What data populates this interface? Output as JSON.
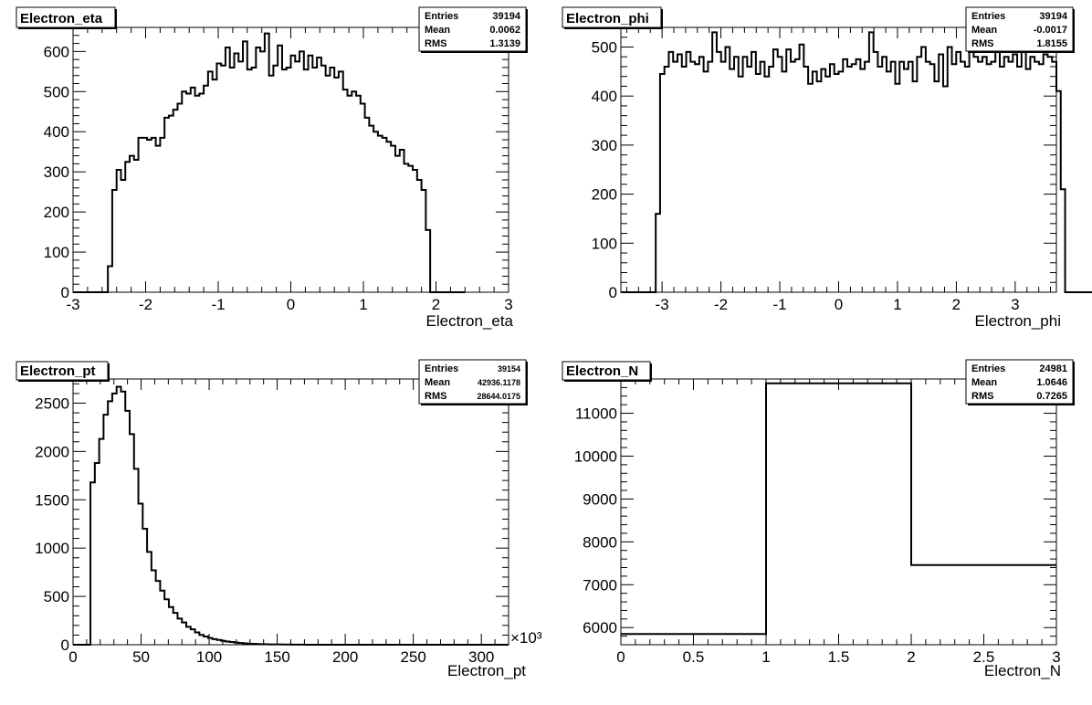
{
  "canvas": {
    "background": "#ffffff",
    "line_color": "#000000"
  },
  "chart_data": [
    {
      "type": "bar",
      "title": "Electron_eta",
      "xlabel": "Electron_eta",
      "ylabel": "",
      "xlim": [
        -3,
        3
      ],
      "ylim": [
        0,
        660
      ],
      "x_ticks": [
        -3,
        -2,
        -1,
        0,
        1,
        2,
        3
      ],
      "y_ticks": [
        0,
        100,
        200,
        300,
        400,
        500,
        600
      ],
      "x_tick_labels": [
        "-3",
        "-2",
        "-1",
        "0",
        "1",
        "2",
        "3"
      ],
      "y_tick_labels": [
        "0",
        "100",
        "200",
        "300",
        "400",
        "500",
        "600"
      ],
      "x_exponent_label": "",
      "stats": {
        "entries_label": "Entries",
        "entries": "39194",
        "mean_label": "Mean",
        "mean": "0.0062",
        "rms_label": "RMS",
        "rms": "1.3139"
      },
      "bin_edges_start": -3.0,
      "bin_width": 0.06,
      "values": [
        0,
        0,
        0,
        0,
        0,
        0,
        0,
        0,
        65,
        255,
        305,
        280,
        325,
        340,
        330,
        385,
        385,
        380,
        385,
        365,
        385,
        435,
        440,
        455,
        470,
        500,
        495,
        510,
        490,
        495,
        515,
        550,
        530,
        570,
        565,
        610,
        560,
        595,
        575,
        625,
        555,
        560,
        610,
        600,
        645,
        540,
        565,
        615,
        555,
        560,
        590,
        575,
        600,
        555,
        590,
        560,
        585,
        565,
        540,
        560,
        535,
        550,
        505,
        490,
        500,
        490,
        470,
        435,
        415,
        400,
        390,
        385,
        375,
        365,
        340,
        355,
        320,
        315,
        305,
        280,
        255,
        155,
        0,
        0,
        0,
        0,
        0,
        0,
        0,
        0
      ]
    },
    {
      "type": "bar",
      "title": "Electron_phi",
      "xlabel": "Electron_phi",
      "ylabel": "",
      "xlim": [
        -3.7,
        3.7
      ],
      "ylim": [
        0,
        540
      ],
      "x_ticks": [
        -3,
        -2,
        -1,
        0,
        1,
        2,
        3
      ],
      "y_ticks": [
        0,
        100,
        200,
        300,
        400,
        500
      ],
      "x_tick_labels": [
        "-3",
        "-2",
        "-1",
        "0",
        "1",
        "2",
        "3"
      ],
      "y_tick_labels": [
        "0",
        "100",
        "200",
        "300",
        "400",
        "500"
      ],
      "x_exponent_label": "",
      "stats": {
        "entries_label": "Entries",
        "entries": "39194",
        "mean_label": "Mean",
        "mean": "-0.0017",
        "rms_label": "RMS",
        "rms": "1.8155"
      },
      "bin_edges_start": -3.7,
      "bin_width": 0.074,
      "values": [
        0,
        0,
        0,
        0,
        0,
        0,
        0,
        0,
        160,
        445,
        460,
        490,
        470,
        485,
        460,
        490,
        470,
        465,
        480,
        450,
        470,
        530,
        490,
        470,
        500,
        455,
        480,
        440,
        480,
        460,
        490,
        445,
        470,
        440,
        460,
        495,
        480,
        450,
        495,
        470,
        475,
        505,
        460,
        425,
        450,
        430,
        455,
        440,
        465,
        445,
        450,
        475,
        460,
        465,
        475,
        455,
        470,
        530,
        490,
        460,
        480,
        450,
        470,
        425,
        470,
        455,
        470,
        430,
        480,
        500,
        470,
        465,
        430,
        485,
        420,
        500,
        465,
        490,
        470,
        460,
        495,
        480,
        470,
        480,
        465,
        470,
        500,
        460,
        480,
        470,
        485,
        460,
        500,
        455,
        480,
        470,
        465,
        485,
        480,
        470,
        410,
        210,
        0,
        0,
        0,
        0,
        0,
        0,
        0,
        0
      ]
    },
    {
      "type": "bar",
      "title": "Electron_pt",
      "xlabel": "Electron_pt",
      "ylabel": "",
      "xlim": [
        0,
        320
      ],
      "ylim": [
        0,
        2750
      ],
      "x_ticks": [
        0,
        50,
        100,
        150,
        200,
        250,
        300
      ],
      "y_ticks": [
        0,
        500,
        1000,
        1500,
        2000,
        2500
      ],
      "x_tick_labels": [
        "0",
        "50",
        "100",
        "150",
        "200",
        "250",
        "300"
      ],
      "y_tick_labels": [
        "0",
        "500",
        "1000",
        "1500",
        "2000",
        "2500"
      ],
      "x_exponent_label": "×10³",
      "stats": {
        "entries_label": "Entries",
        "entries": "39154",
        "mean_label": "Mean",
        "mean": "42936.1178",
        "rms_label": "RMS",
        "rms": "28644.0175"
      },
      "bin_edges_start": 0,
      "bin_width": 3.2,
      "values": [
        0,
        0,
        0,
        0,
        1680,
        1880,
        2130,
        2380,
        2520,
        2600,
        2670,
        2620,
        2420,
        2180,
        1820,
        1460,
        1200,
        960,
        770,
        660,
        560,
        470,
        390,
        330,
        270,
        230,
        185,
        160,
        128,
        102,
        85,
        70,
        58,
        50,
        40,
        33,
        28,
        23,
        18,
        14,
        11,
        9,
        7,
        6,
        5,
        4,
        3,
        3,
        2,
        2,
        1,
        1,
        1,
        0,
        0,
        0,
        0,
        0,
        0,
        0,
        0,
        0,
        0,
        0,
        0,
        0,
        0,
        0,
        0,
        0,
        0,
        0,
        0,
        0,
        0,
        0,
        0,
        0,
        0,
        0,
        0,
        0,
        0,
        0,
        0,
        0,
        0,
        0,
        0,
        0,
        0,
        0,
        0,
        0,
        0,
        0,
        0,
        0,
        0,
        0
      ]
    },
    {
      "type": "bar",
      "title": "Electron_N",
      "xlabel": "Electron_N",
      "ylabel": "",
      "xlim": [
        0,
        3
      ],
      "ylim": [
        5600,
        11800
      ],
      "x_ticks": [
        0,
        0.5,
        1,
        1.5,
        2,
        2.5,
        3
      ],
      "y_ticks": [
        6000,
        7000,
        8000,
        9000,
        10000,
        11000
      ],
      "x_tick_labels": [
        "0",
        "0.5",
        "1",
        "1.5",
        "2",
        "2.5",
        "3"
      ],
      "y_tick_labels": [
        "6000",
        "7000",
        "8000",
        "9000",
        "10000",
        "11000"
      ],
      "x_exponent_label": "",
      "stats": {
        "entries_label": "Entries",
        "entries": "24981",
        "mean_label": "Mean",
        "mean": "1.0646",
        "rms_label": "RMS",
        "rms": "0.7265"
      },
      "bin_edges_start": 0,
      "bin_width": 1,
      "values": [
        5850,
        11700,
        7460
      ]
    }
  ]
}
